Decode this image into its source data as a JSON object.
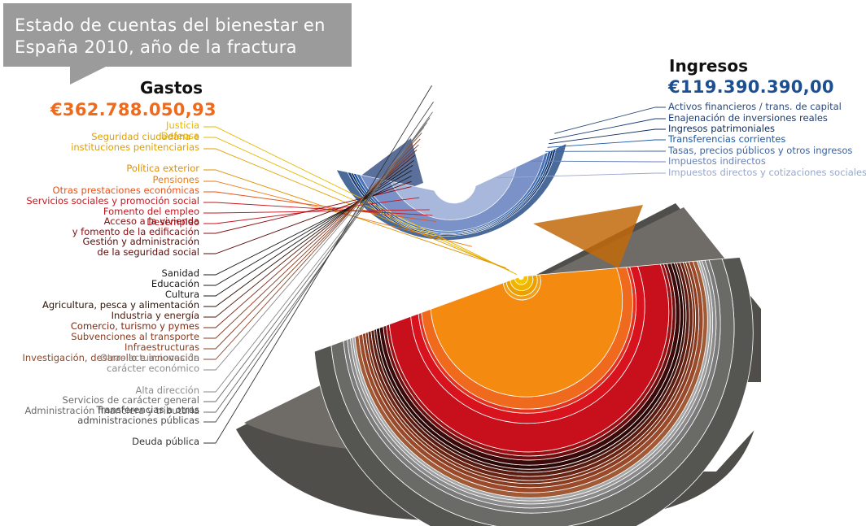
{
  "title": "Estado de cuentas del bienestar en España 2010, año de la fractura",
  "title_lines": [
    "Estado de cuentas del bienestar en",
    "España 2010, año de la fractura"
  ],
  "gastos": {
    "label": "Gastos",
    "amount": "€362.788.050,93",
    "color": "#ee6a1c"
  },
  "ingresos": {
    "label": "Ingresos",
    "amount": "€119.390.390,00",
    "color": "#1c4f91"
  },
  "chart_data": {
    "type": "pie",
    "title": "Estado de cuentas del bienestar en España 2010, año de la fractura",
    "series": [
      {
        "name": "Gastos",
        "total": "€362.788.050,93",
        "categories": [
          {
            "label": "Justicia",
            "color": "#f5c400"
          },
          {
            "label": "Defensa",
            "color": "#f0b400"
          },
          {
            "label": "Seguridad ciudadana e\ninstituciones penitenciarias",
            "color": "#eca000"
          },
          {
            "label": "Política exterior",
            "color": "#f0a01a"
          },
          {
            "label": "Pensiones",
            "color": "#f58a10"
          },
          {
            "label": "Otras prestaciones económicas",
            "color": "#ef6a1c"
          },
          {
            "label": "Servicios sociales y promoción social",
            "color": "#e4301e"
          },
          {
            "label": "Fomento del empleo",
            "color": "#d8131e"
          },
          {
            "label": "Desempleo",
            "color": "#c8101c"
          },
          {
            "label": "Acceso a la vivienda\ny fomento de la edificación",
            "color": "#9e0f14"
          },
          {
            "label": "Gestión y administración\nde la seguridad social",
            "color": "#6e0d0e"
          },
          {
            "label": "Sanidad",
            "color": "#3a0a0a"
          },
          {
            "label": "Educación",
            "color": "#2a0808"
          },
          {
            "label": "Cultura",
            "color": "#3e120c"
          },
          {
            "label": "Agricultura, pesca y alimentación",
            "color": "#5a1c10"
          },
          {
            "label": "Industria y energía",
            "color": "#6a2414"
          },
          {
            "label": "Comercio, turismo y pymes",
            "color": "#7a3018"
          },
          {
            "label": "Subvenciones al transporte",
            "color": "#8a3c20"
          },
          {
            "label": "Infraestructuras",
            "color": "#9a4a2a"
          },
          {
            "label": "Investigación, desarrollo e innovación",
            "color": "#a05a36"
          },
          {
            "label": "Otras actuaciones de\ncarácter económico",
            "color": "#a8a8a8"
          },
          {
            "label": "Alta dirección",
            "color": "#9a9a9a"
          },
          {
            "label": "Servicios de carácter general",
            "color": "#8a8a8a"
          },
          {
            "label": "Administración financiera y tributaria",
            "color": "#7a7a7a"
          },
          {
            "label": "Transferencias a otras\nadministraciones públicas",
            "color": "#6a6a66"
          },
          {
            "label": "Deuda pública",
            "color": "#555552"
          }
        ]
      },
      {
        "name": "Ingresos",
        "total": "€119.390.390,00",
        "categories": [
          {
            "label": "Activos financieros / trans. de capital",
            "color": "#4a6a9a"
          },
          {
            "label": "Enajenación de inversiones reales",
            "color": "#1a3d78"
          },
          {
            "label": "Ingresos patrimoniales",
            "color": "#0d2a5a"
          },
          {
            "label": "Transferencias corrientes",
            "color": "#1d59a6"
          },
          {
            "label": "Tasas, precios públicos y otros ingresos",
            "color": "#4a72b0"
          },
          {
            "label": "Impuestos indirectos",
            "color": "#7a92c8"
          },
          {
            "label": "Impuestos directos y cotizaciones sociales",
            "color": "#a8b8dc"
          }
        ]
      }
    ]
  }
}
